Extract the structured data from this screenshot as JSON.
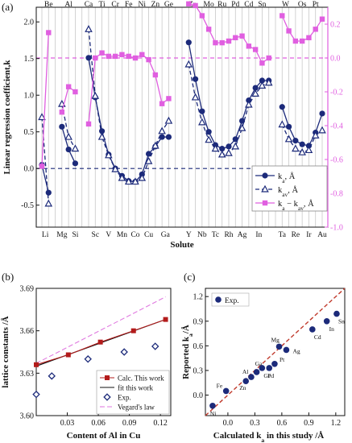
{
  "colors": {
    "navy": "#1c2a7a",
    "magenta": "#e05fe0",
    "dark_red": "#b31b1b",
    "black": "#111111",
    "grid": "#c8c8c8",
    "vegard": "#e07ae0"
  },
  "chart_data": [
    {
      "panel": "(a)",
      "type": "line",
      "xlabel": "Solute",
      "ylabel": "Linear regression coefficient,k",
      "ylim": [
        -0.8,
        2.2
      ],
      "y2lim": [
        -1.0,
        0.3
      ],
      "yticks": [
        "-0.5",
        "0.0",
        "0.5",
        "1.0",
        "1.5",
        "2.0"
      ],
      "y2ticks": [
        "-1.0",
        "-0.8",
        "-0.6",
        "-0.4",
        "-0.2",
        "0.0",
        "0.2"
      ],
      "bottom_labels": [
        "Li",
        "Mg",
        "Si",
        "Sc",
        "V",
        "Mn",
        "Co",
        "Cu",
        "Ga",
        "Y",
        "Nb",
        "Tc",
        "Rh",
        "Ag",
        "In",
        "Ta",
        "Re",
        "Ir",
        "Au"
      ],
      "top_labels": [
        "Be",
        "Al",
        "Ca",
        "Ti",
        "Cr",
        "Fe",
        "Ni",
        "Zn",
        "Ge",
        "Zr",
        "Mo",
        "Ru",
        "Pd",
        "Cd",
        "Sn",
        "W",
        "Os",
        "Pt"
      ],
      "grid": "vertical",
      "hline_left": 0.0,
      "hline_right": 0.0,
      "legend": [
        "k_a, Å",
        "k_av, Å",
        "k_a − k_av, Å"
      ],
      "legend_position": "bottom-right",
      "series": [
        {
          "name": "k_a, Å",
          "axis": "left",
          "segments": [
            {
              "x": [
                1,
                2
              ],
              "y": [
                0.05,
                -0.33
              ]
            },
            {
              "x": [
                4,
                5,
                6
              ],
              "y": [
                0.57,
                0.26,
                0.07
              ]
            },
            {
              "x": [
                8,
                9,
                10,
                11,
                12,
                13,
                14,
                15,
                16,
                17,
                18,
                19,
                20
              ],
              "y": [
                1.51,
                0.97,
                0.51,
                0.19,
                0.0,
                -0.1,
                -0.17,
                -0.18,
                -0.08,
                0.2,
                0.3,
                0.43,
                0.43
              ]
            },
            {
              "x": [
                23,
                24,
                25,
                26,
                27,
                28,
                29,
                30,
                31,
                32,
                33,
                34,
                35
              ],
              "y": [
                1.72,
                1.22,
                0.78,
                0.5,
                0.32,
                0.27,
                0.3,
                0.4,
                0.65,
                0.93,
                1.1,
                1.2,
                1.2
              ]
            },
            {
              "x": [
                37,
                38,
                39,
                40,
                41,
                42,
                43
              ],
              "y": [
                0.84,
                0.57,
                0.38,
                0.33,
                0.31,
                0.49,
                0.75
              ]
            }
          ]
        },
        {
          "name": "k_av, Å",
          "axis": "left",
          "segments": [
            {
              "x": [
                1,
                2
              ],
              "y": [
                0.7,
                -0.48
              ]
            },
            {
              "x": [
                4,
                5,
                6
              ],
              "y": [
                0.88,
                0.43,
                0.27
              ]
            },
            {
              "x": [
                8,
                9,
                10,
                11,
                12,
                13,
                14,
                15,
                16,
                17,
                18,
                19,
                20
              ],
              "y": [
                1.9,
                0.99,
                0.43,
                0.18,
                -0.01,
                -0.13,
                -0.18,
                -0.18,
                -0.13,
                0.1,
                0.31,
                0.51,
                0.65
              ]
            },
            {
              "x": [
                23,
                24,
                25,
                26,
                27,
                28,
                29,
                30,
                31,
                32,
                33,
                34,
                35
              ],
              "y": [
                1.42,
                0.97,
                0.63,
                0.39,
                0.27,
                0.19,
                0.21,
                0.3,
                0.55,
                0.87,
                1.02,
                1.13,
                1.17
              ]
            },
            {
              "x": [
                37,
                38,
                39,
                40,
                41,
                42,
                43
              ],
              "y": [
                0.6,
                0.4,
                0.27,
                0.22,
                0.25,
                0.45,
                0.52
              ]
            }
          ]
        },
        {
          "name": "k_a − k_av, Å",
          "axis": "right",
          "segments": [
            {
              "x": [
                1,
                2
              ],
              "y": [
                -0.64,
                0.15
              ]
            },
            {
              "x": [
                4,
                5,
                6
              ],
              "y": [
                -0.32,
                -0.17,
                -0.2
              ]
            },
            {
              "x": [
                8,
                9,
                10,
                11,
                12,
                13,
                14,
                15,
                16,
                17,
                18,
                19,
                20
              ],
              "y": [
                -0.39,
                0.0,
                0.03,
                0.01,
                0.01,
                0.02,
                0.01,
                -0.0,
                0.02,
                -0.01,
                -0.1,
                -0.27,
                -0.24
              ]
            },
            {
              "x": [
                23,
                24,
                25,
                26,
                27,
                28,
                29,
                30,
                31,
                32,
                33,
                34,
                35
              ],
              "y": [
                0.32,
                0.31,
                0.25,
                0.17,
                0.09,
                0.09,
                0.1,
                0.12,
                0.13,
                0.07,
                0.05,
                -0.03,
                -0.0
              ]
            },
            {
              "x": [
                37,
                38,
                39,
                40,
                41,
                42,
                43
              ],
              "y": [
                0.25,
                0.16,
                0.1,
                0.1,
                0.12,
                0.17,
                0.23
              ]
            }
          ]
        }
      ]
    },
    {
      "panel": "(b)",
      "type": "line",
      "xlabel": "Content of Al in Cu",
      "ylabel": "lattice constants /Å",
      "xlim": [
        0.0,
        0.13
      ],
      "ylim": [
        3.6,
        3.69
      ],
      "xticks": [
        "0.03",
        "0.06",
        "0.09",
        "0.12"
      ],
      "yticks": [
        "3.60",
        "3.63",
        "3.66",
        "3.69"
      ],
      "legend": [
        "Calc. This work",
        "fit this work",
        "Exp.",
        "Vegard's law"
      ],
      "legend_position": "bottom-right",
      "series": [
        {
          "name": "Calc. This work",
          "x": [
            0.0,
            0.031,
            0.062,
            0.094,
            0.125
          ],
          "y": [
            3.636,
            3.643,
            3.652,
            3.66,
            3.668
          ]
        },
        {
          "name": "fit this work",
          "x": [
            0.0,
            0.125
          ],
          "y": [
            3.635,
            3.668
          ]
        },
        {
          "name": "Exp.",
          "x": [
            0.0,
            0.015,
            0.05,
            0.085,
            0.115
          ],
          "y": [
            3.615,
            3.628,
            3.64,
            3.645,
            3.649
          ]
        },
        {
          "name": "Vegard's law",
          "x": [
            0.0,
            0.125
          ],
          "y": [
            3.637,
            3.684
          ]
        }
      ]
    },
    {
      "panel": "(c)",
      "type": "scatter",
      "xlabel": "Calculated k_a in this study /Å",
      "ylabel": "Reported k_a/Å",
      "xlim": [
        -0.25,
        1.3
      ],
      "ylim": [
        -0.25,
        1.3
      ],
      "xticks": [
        "0.0",
        "0.3",
        "0.6",
        "0.9",
        "1.2"
      ],
      "yticks": [
        "0.0",
        "0.3",
        "0.6",
        "0.9",
        "1.2"
      ],
      "legend": [
        "Exp."
      ],
      "legend_position": "top-left",
      "diagonal": true,
      "points": [
        {
          "label": "Ni",
          "x": -0.17,
          "y": -0.13
        },
        {
          "label": "Fe",
          "x": -0.02,
          "y": 0.05
        },
        {
          "label": "Zn",
          "x": 0.2,
          "y": 0.17
        },
        {
          "label": "Al",
          "x": 0.26,
          "y": 0.22
        },
        {
          "label": "Ga",
          "x": 0.32,
          "y": 0.28
        },
        {
          "label": "Ge",
          "x": 0.38,
          "y": 0.33
        },
        {
          "label": "Pd",
          "x": 0.46,
          "y": 0.33
        },
        {
          "label": "Pt",
          "x": 0.52,
          "y": 0.38
        },
        {
          "label": "Mg",
          "x": 0.57,
          "y": 0.59
        },
        {
          "label": "Ag",
          "x": 0.65,
          "y": 0.55
        },
        {
          "label": "Cd",
          "x": 0.94,
          "y": 0.8
        },
        {
          "label": "In",
          "x": 1.1,
          "y": 0.9
        },
        {
          "label": "Sn",
          "x": 1.21,
          "y": 0.99
        }
      ]
    }
  ]
}
